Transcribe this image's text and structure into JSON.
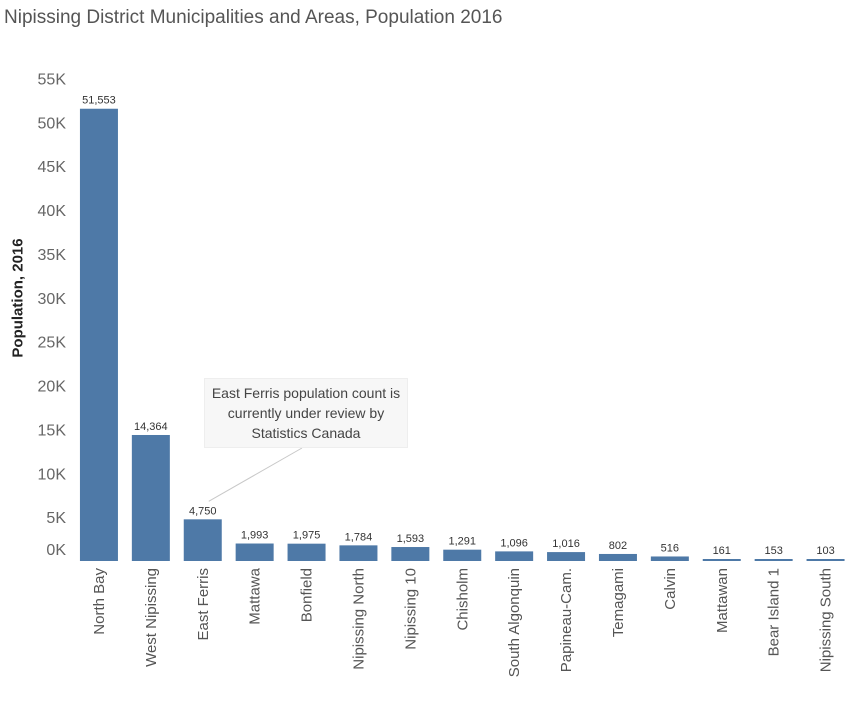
{
  "title": "Nipissing District Municipalities and Areas, Population 2016",
  "annotation": "East Ferris population count is currently under review by Statistics Canada",
  "chart_data": {
    "type": "bar",
    "title": "Nipissing District Municipalities and Areas, Population 2016",
    "xlabel": "",
    "ylabel": "Population, 2016",
    "ylim": [
      0,
      55000
    ],
    "yticks": [
      {
        "value": 0,
        "label": "0K"
      },
      {
        "value": 5000,
        "label": "5K"
      },
      {
        "value": 10000,
        "label": "10K"
      },
      {
        "value": 15000,
        "label": "15K"
      },
      {
        "value": 20000,
        "label": "20K"
      },
      {
        "value": 25000,
        "label": "25K"
      },
      {
        "value": 30000,
        "label": "30K"
      },
      {
        "value": 35000,
        "label": "35K"
      },
      {
        "value": 40000,
        "label": "40K"
      },
      {
        "value": 45000,
        "label": "45K"
      },
      {
        "value": 50000,
        "label": "50K"
      },
      {
        "value": 55000,
        "label": "55K"
      }
    ],
    "categories": [
      "North Bay",
      "West Nipissing",
      "East Ferris",
      "Mattawa",
      "Bonfield",
      "Nipissing North",
      "Nipissing 10",
      "Chisholm",
      "South Algonquin",
      "Papineau-Cam.",
      "Temagami",
      "Calvin",
      "Mattawan",
      "Bear Island 1",
      "Nipissing South"
    ],
    "values": [
      51553,
      14364,
      4750,
      1993,
      1975,
      1784,
      1593,
      1291,
      1096,
      1016,
      802,
      516,
      161,
      153,
      103
    ],
    "data_labels": [
      "51,553",
      "14,364",
      "4,750",
      "1,993",
      "1,975",
      "1,784",
      "1,593",
      "1,291",
      "1,096",
      "1,016",
      "802",
      "516",
      "161",
      "153",
      "103"
    ],
    "bar_color": "#4e79a7",
    "grid": false,
    "legend": "none"
  }
}
